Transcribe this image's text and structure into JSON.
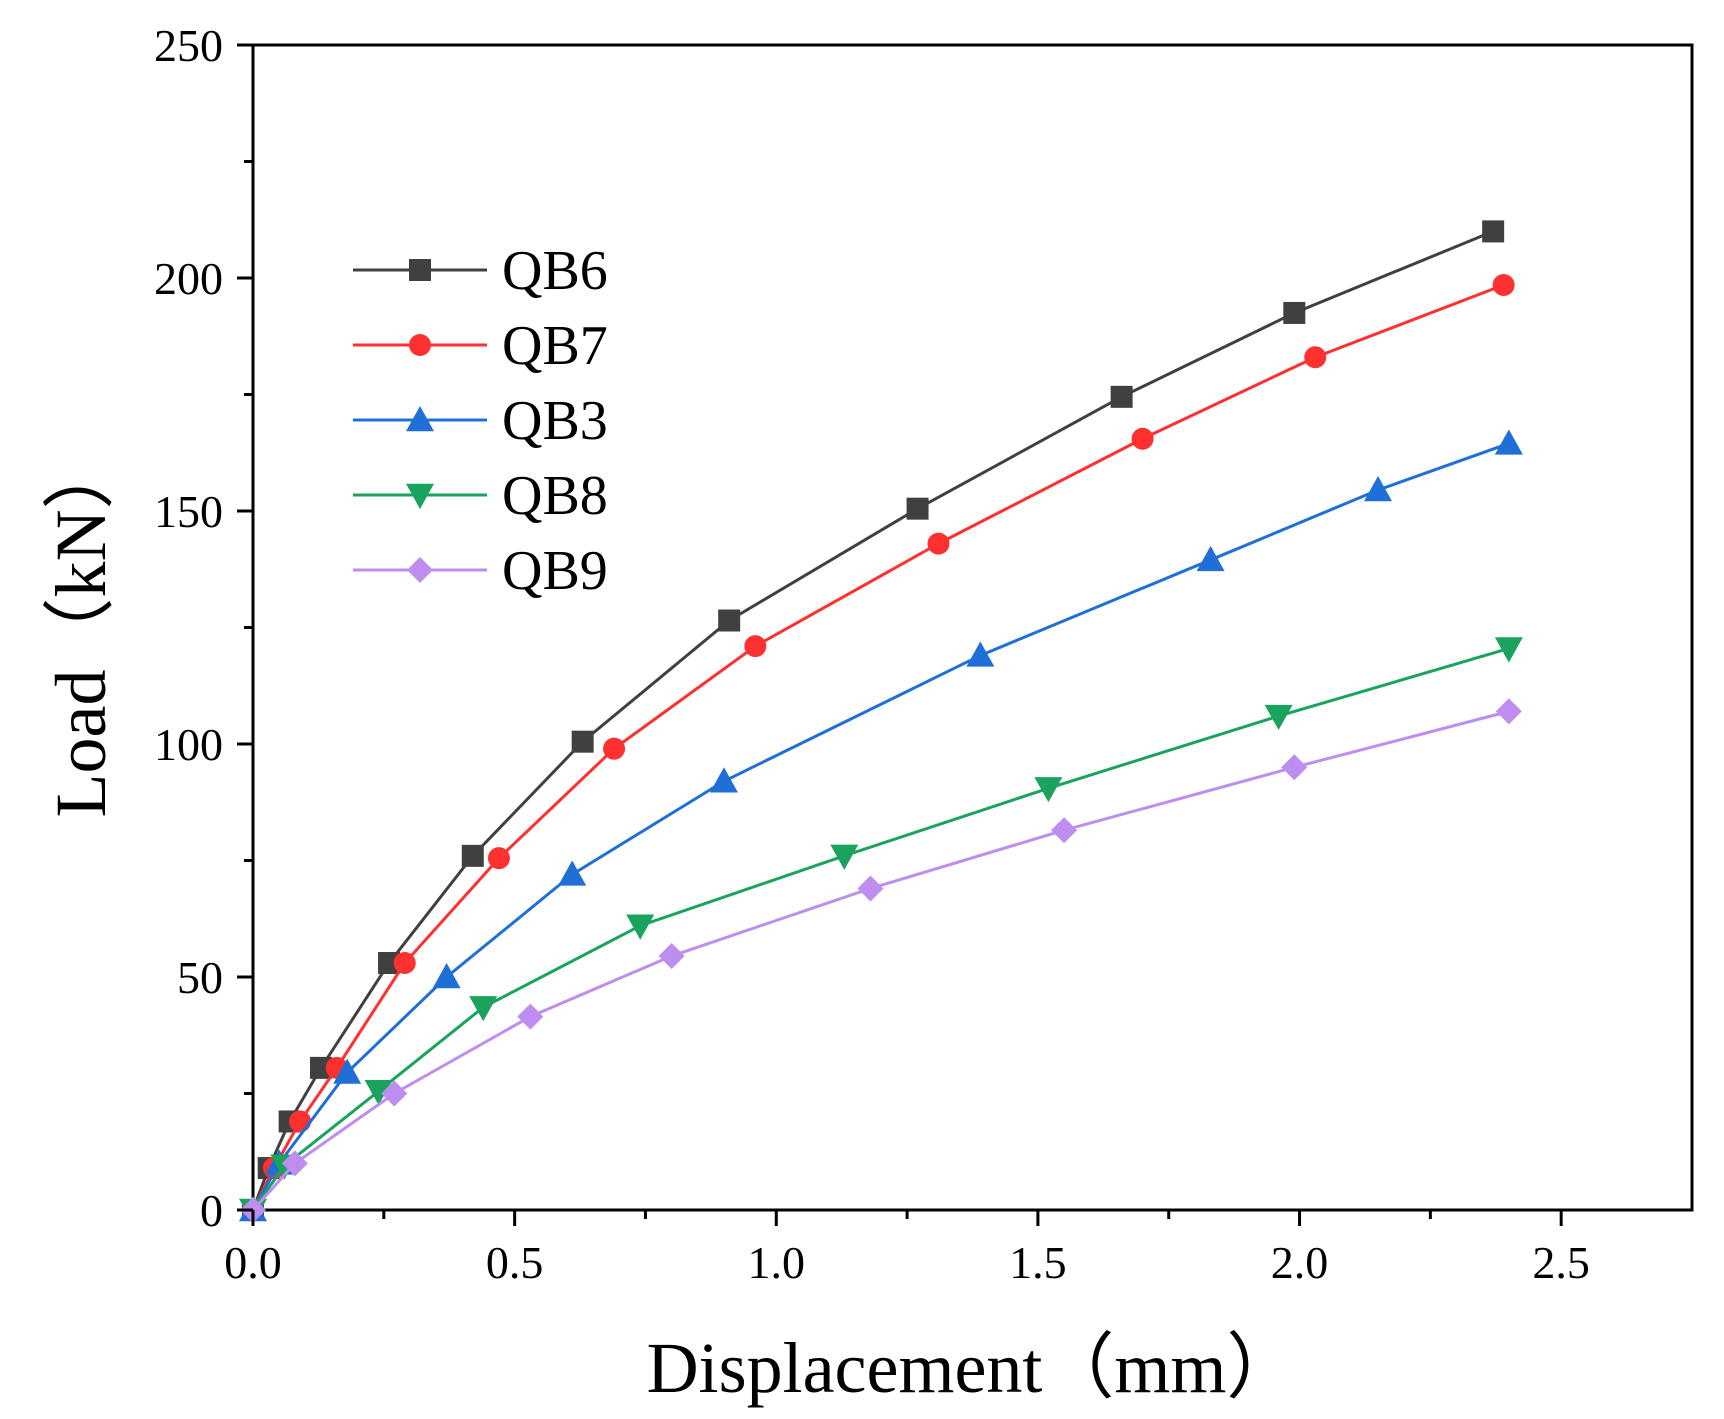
{
  "chart_data": {
    "type": "line",
    "title": "",
    "xlabel": "Displacement（mm）",
    "ylabel": "Load（kN）",
    "xlim": [
      0,
      2.75
    ],
    "ylim": [
      0,
      250
    ],
    "xticks": [
      0.0,
      0.5,
      1.0,
      1.5,
      2.0,
      2.5
    ],
    "xtick_labels": [
      "0.0",
      "0.5",
      "1.0",
      "1.5",
      "2.0",
      "2.5"
    ],
    "yticks": [
      0,
      50,
      100,
      150,
      200,
      250
    ],
    "ytick_labels": [
      "0",
      "50",
      "100",
      "150",
      "200",
      "250"
    ],
    "grid": false,
    "legend_position": "upper-left",
    "series": [
      {
        "name": "QB6",
        "color": "#404040",
        "marker": "square",
        "x": [
          0,
          0.03,
          0.07,
          0.13,
          0.26,
          0.42,
          0.63,
          0.91,
          1.27,
          1.66,
          1.99,
          2.37
        ],
        "y": [
          0,
          9,
          19,
          30.5,
          53,
          76,
          100.5,
          126.5,
          150.5,
          174.5,
          192.5,
          210
        ]
      },
      {
        "name": "QB7",
        "color": "#ff3030",
        "marker": "circle",
        "x": [
          0,
          0.04,
          0.09,
          0.16,
          0.29,
          0.47,
          0.69,
          0.96,
          1.31,
          1.7,
          2.03,
          2.39
        ],
        "y": [
          0,
          9,
          19,
          30.5,
          53,
          75.5,
          99,
          121,
          143,
          165.5,
          183,
          198.5
        ]
      },
      {
        "name": "QB3",
        "color": "#1f6fd6",
        "marker": "triangle-up",
        "x": [
          0,
          0.05,
          0.18,
          0.37,
          0.61,
          0.9,
          1.39,
          1.83,
          2.15,
          2.4
        ],
        "y": [
          0,
          10,
          29.5,
          50,
          72,
          92,
          119,
          139.5,
          154.5,
          164.5
        ]
      },
      {
        "name": "QB8",
        "color": "#1aa35c",
        "marker": "triangle-down",
        "x": [
          0,
          0.06,
          0.24,
          0.44,
          0.74,
          1.13,
          1.52,
          1.96,
          2.4
        ],
        "y": [
          0,
          9.5,
          25.5,
          43.5,
          61,
          76,
          90.5,
          106,
          120.5
        ]
      },
      {
        "name": "QB9",
        "color": "#bd8ef0",
        "marker": "diamond",
        "x": [
          0,
          0.08,
          0.27,
          0.53,
          0.8,
          1.18,
          1.55,
          1.99,
          2.4
        ],
        "y": [
          0,
          10,
          25,
          41.5,
          54.5,
          69,
          81.5,
          95,
          107
        ]
      }
    ]
  }
}
